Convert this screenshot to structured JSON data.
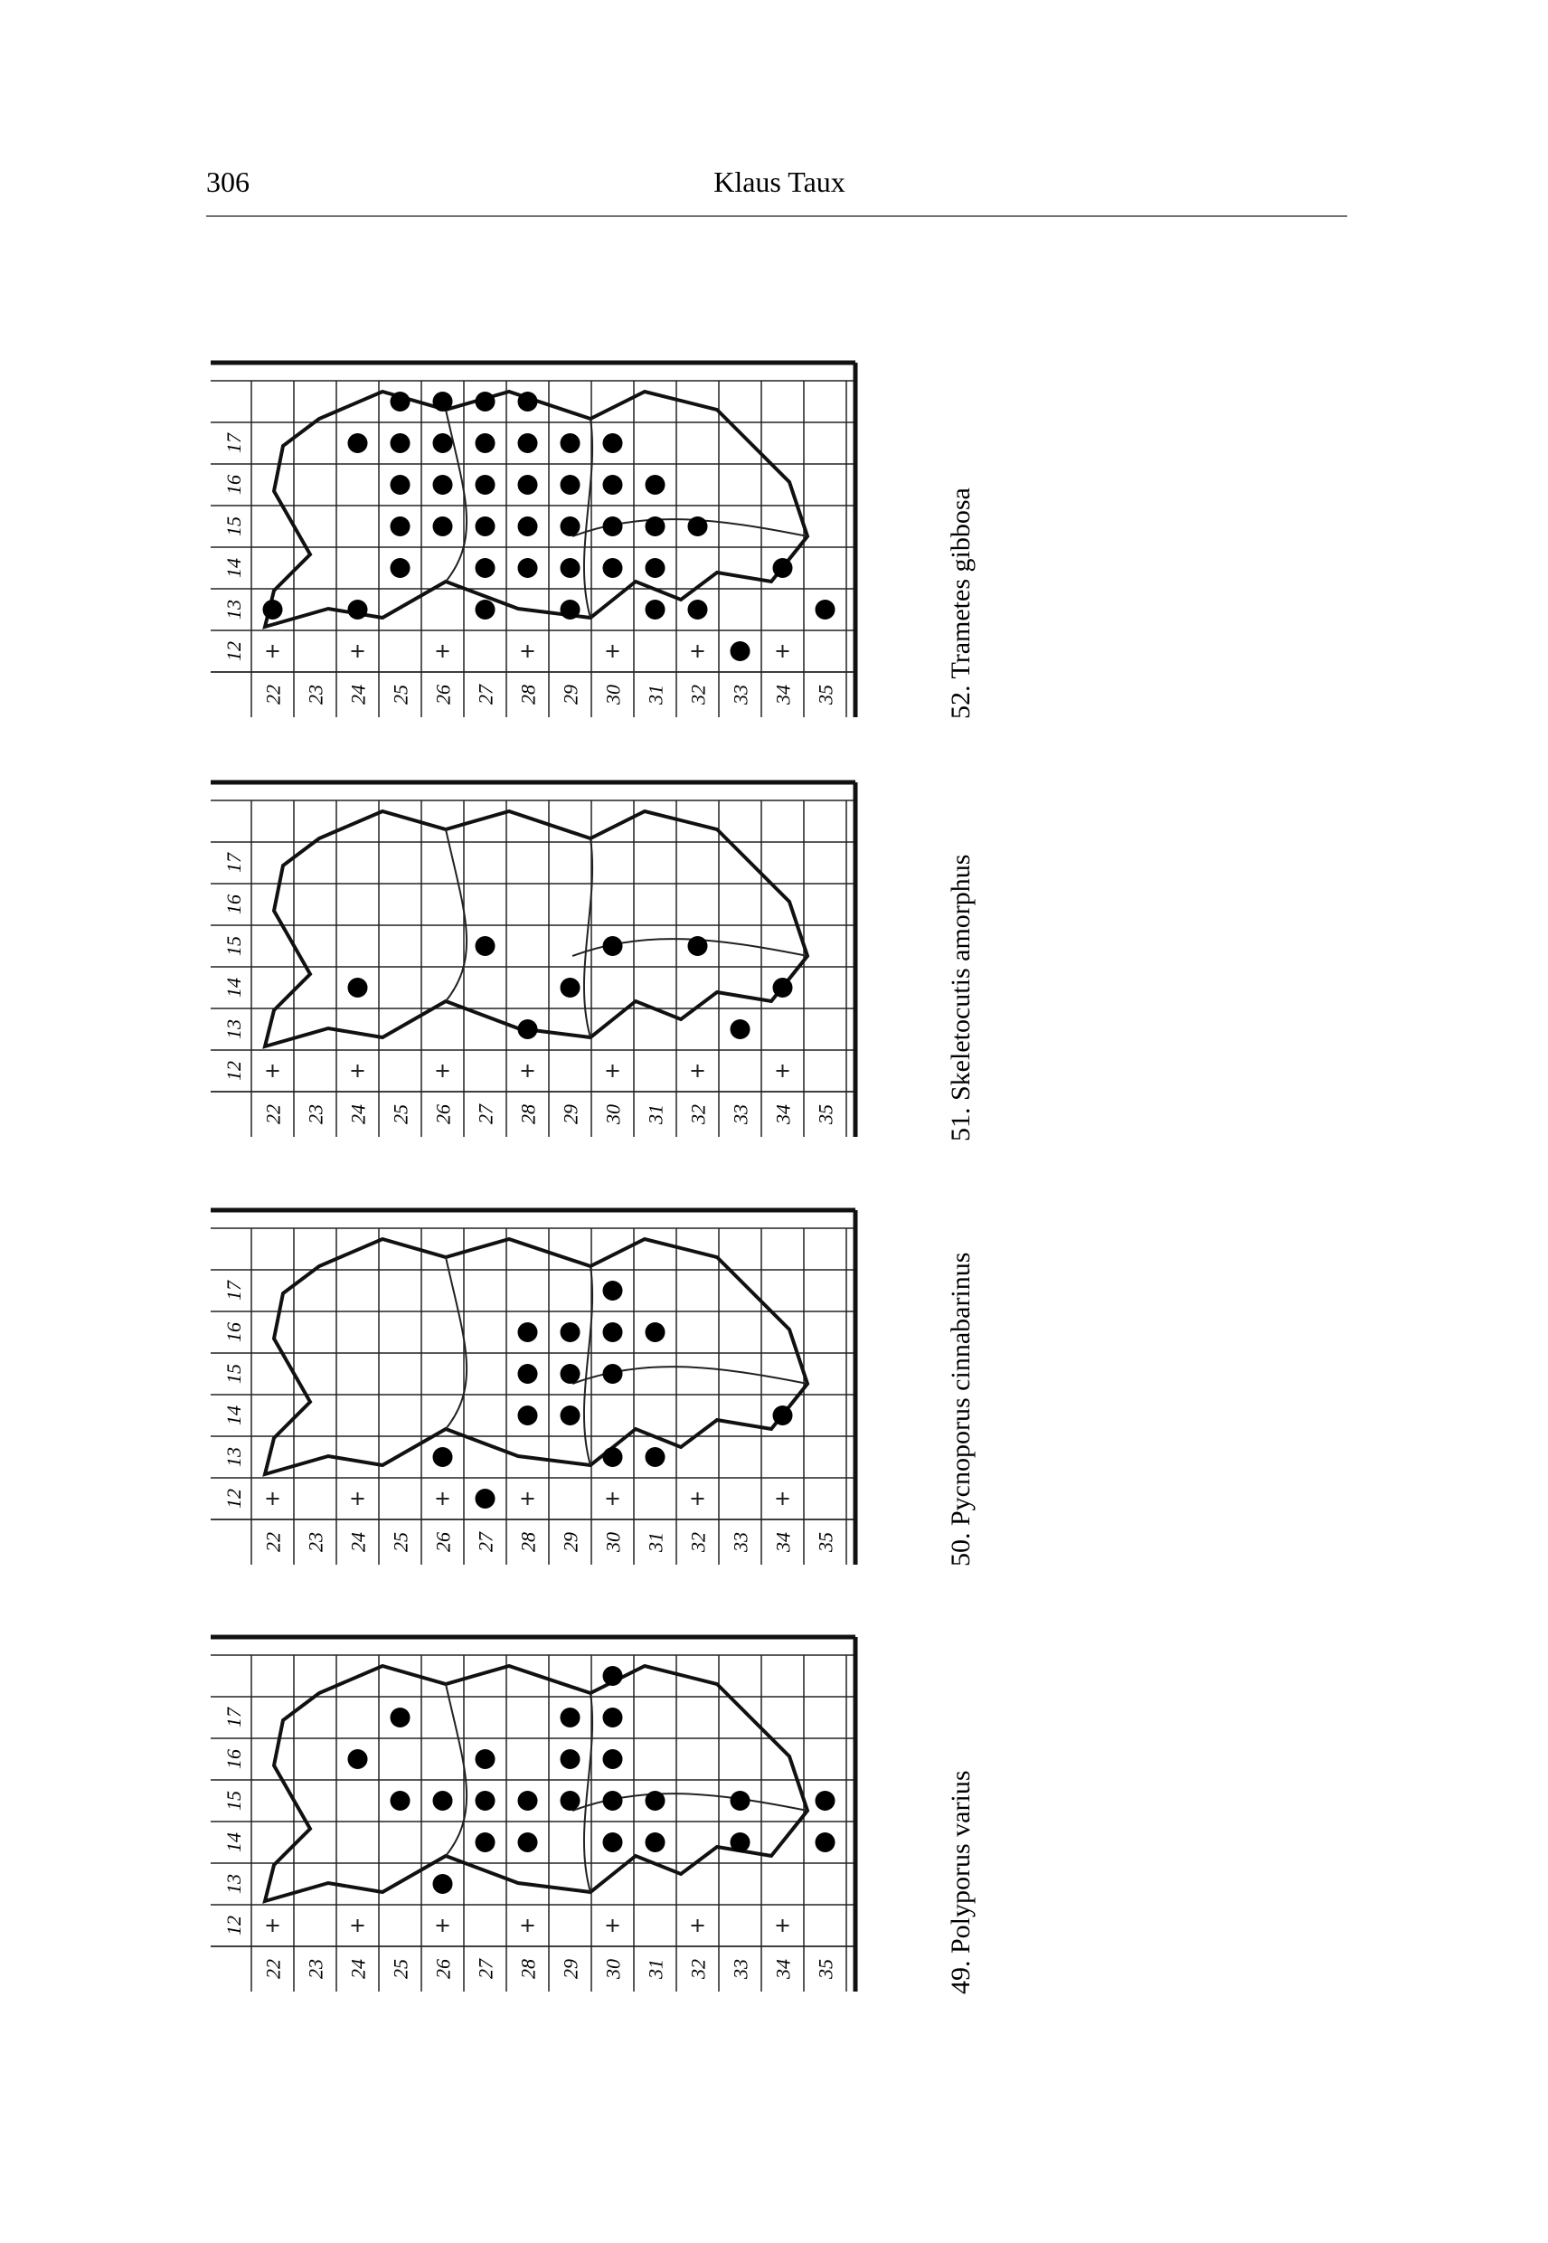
{
  "header": {
    "page_number": "306",
    "author": "Klaus Taux"
  },
  "maps": [
    {
      "caption": "52. Trametes gibbosa",
      "column_labels": [
        "12",
        "13",
        "14",
        "15",
        "16",
        "17"
      ],
      "row_labels": [
        "22",
        "23",
        "24",
        "25",
        "26",
        "27",
        "28",
        "29",
        "30",
        "31",
        "32",
        "33",
        "34",
        "35"
      ]
    },
    {
      "caption": "51. Skeletocutis amorphus",
      "column_labels": [
        "12",
        "13",
        "14",
        "15",
        "16",
        "17"
      ],
      "row_labels": [
        "22",
        "23",
        "24",
        "25",
        "26",
        "27",
        "28",
        "29",
        "30",
        "31",
        "32",
        "33",
        "34",
        "35"
      ]
    },
    {
      "caption": "50. Pycnoporus cinnabarinus",
      "column_labels": [
        "12",
        "13",
        "14",
        "15",
        "16",
        "17"
      ],
      "row_labels": [
        "22",
        "23",
        "24",
        "25",
        "26",
        "27",
        "28",
        "29",
        "30",
        "31",
        "32",
        "33",
        "34",
        "35"
      ]
    },
    {
      "caption": "49. Polyporus varius",
      "column_labels": [
        "12",
        "13",
        "14",
        "15",
        "16",
        "17"
      ],
      "row_labels": [
        "22",
        "23",
        "24",
        "25",
        "26",
        "27",
        "28",
        "29",
        "30",
        "31",
        "32",
        "33",
        "34",
        "35"
      ]
    }
  ]
}
